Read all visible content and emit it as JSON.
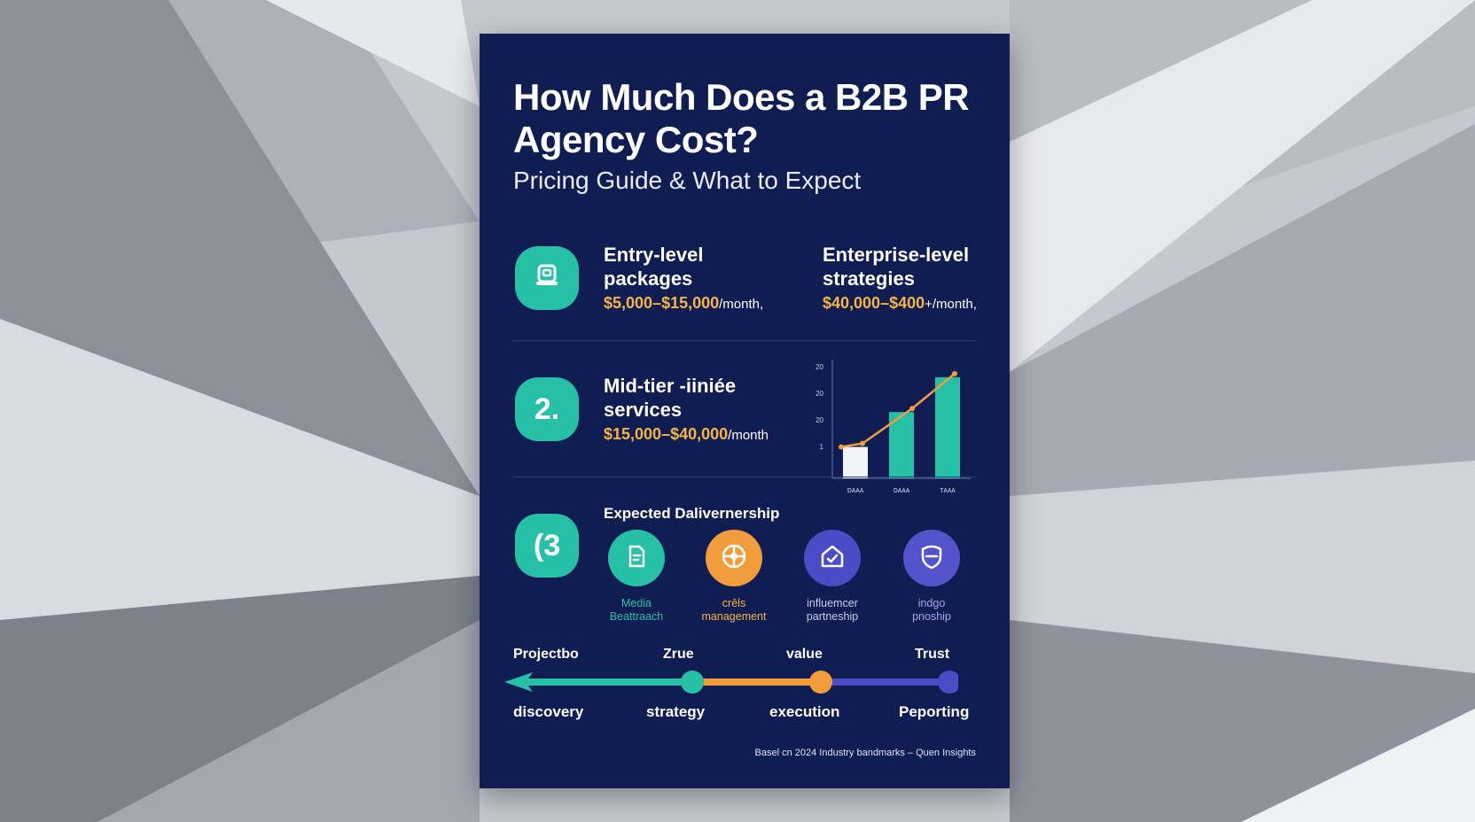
{
  "title": "How Much Does a B2B PR Agency Cost?",
  "subtitle": "Pricing Guide & What to Expect",
  "tiers": [
    {
      "badge": "",
      "name_line1": "Entry-level",
      "name_line2": "packages",
      "price": "$5,000–$15,000",
      "unit": "/month,"
    },
    {
      "badge": "",
      "name_line1": "Enterprise-level",
      "name_line2": "strategies",
      "price": "$40,000–$400",
      "unit": "+/month,"
    },
    {
      "badge": "2.",
      "name_line1": "Mid-tier ‑iiniée",
      "name_line2": "services",
      "price": "$15,000–$40,000",
      "unit": "/month"
    }
  ],
  "chart_data": {
    "type": "bar",
    "categories": [
      "ᴅᴀᴀᴀ",
      "ᴅᴀᴀᴀ",
      "ᴛᴀᴀᴀ"
    ],
    "values": [
      9,
      19,
      29
    ],
    "trend_line": [
      9,
      10,
      20,
      30
    ],
    "y_ticks": [
      "20",
      "20",
      "20",
      "1"
    ],
    "ylim": [
      0,
      32
    ],
    "bar_colors": [
      "#f2f4f8",
      "#25c0a5",
      "#25c0a5"
    ],
    "line_color": "#f39c3c"
  },
  "deliverables": {
    "badge": "(3",
    "title": "Expected Dalivernership",
    "items": [
      {
        "icon": "document-icon",
        "label_line1": "Media",
        "label_line2": "Beattraach",
        "color": "#25c0a5",
        "label_color": "#25c0a5"
      },
      {
        "icon": "compass-icon",
        "label_line1": "crēls",
        "label_line2": "management",
        "color": "#f39c3c",
        "label_color": "#f6b544"
      },
      {
        "icon": "house-check-icon",
        "label_line1": "influemcer",
        "label_line2": "partneship",
        "color": "#4b4bc6",
        "label_color": "#c9cde6"
      },
      {
        "icon": "shield-icon",
        "label_line1": "indgo",
        "label_line2": "pnoship",
        "color": "#5553cc",
        "label_color": "#a9a6ee"
      }
    ]
  },
  "timeline": {
    "top_labels": [
      "Projectbo",
      "Zrue",
      "value",
      "Trust"
    ],
    "bottom_labels": [
      "discovery",
      "strategy",
      "execution",
      "Peporting"
    ],
    "colors": [
      "#25c0a5",
      "#f39c3c",
      "#4b4bc6"
    ]
  },
  "footnote": "Basel cn 2024 Industry bandmarks – Quen Insights"
}
